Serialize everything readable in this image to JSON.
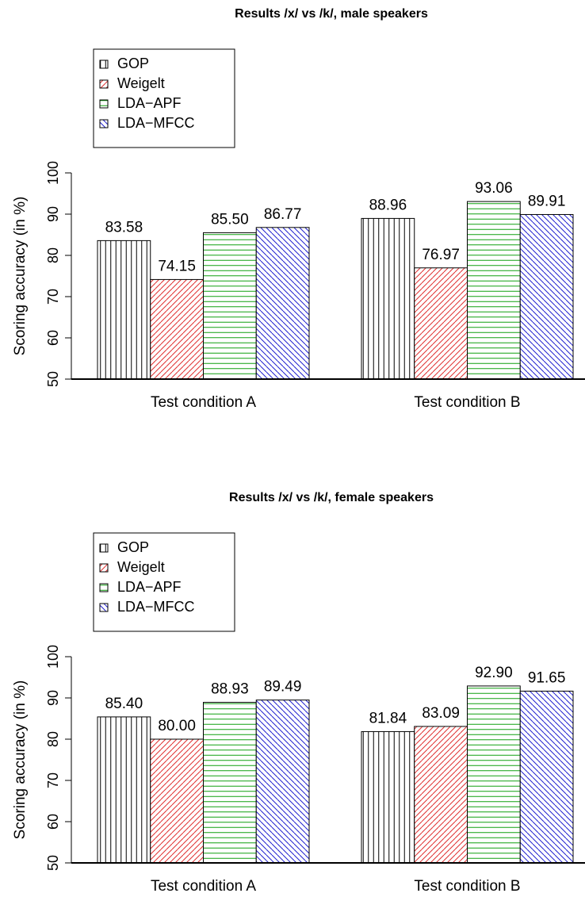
{
  "chart_data": [
    {
      "type": "bar",
      "title": "Results /x/ vs /k/, male speakers",
      "y_label": "Scoring accuracy (in %)",
      "categories": [
        "Test condition A",
        "Test condition B"
      ],
      "series": [
        {
          "name": "GOP",
          "color": "#000000",
          "hatch": "vertical",
          "values": [
            83.58,
            88.96
          ],
          "value_labels": [
            "83.58",
            "88.96"
          ]
        },
        {
          "name": "Weigelt",
          "color": "#e03030",
          "hatch": "diagonal-up",
          "values": [
            74.15,
            76.97
          ],
          "value_labels": [
            "74.15",
            "76.97"
          ]
        },
        {
          "name": "LDA−APF",
          "color": "#10a010",
          "hatch": "horizontal",
          "values": [
            85.5,
            93.06
          ],
          "value_labels": [
            "85.50",
            "93.06"
          ]
        },
        {
          "name": "LDA−MFCC",
          "color": "#2020d0",
          "hatch": "diagonal-down",
          "values": [
            86.77,
            89.91
          ],
          "value_labels": [
            "86.77",
            "89.91"
          ]
        }
      ],
      "ylim": [
        50,
        100
      ],
      "yticks": [
        50,
        60,
        70,
        80,
        90,
        100
      ],
      "legend": "top-left"
    },
    {
      "type": "bar",
      "title": "Results /x/ vs /k/, female speakers",
      "y_label": "Scoring accuracy (in %)",
      "categories": [
        "Test condition A",
        "Test condition B"
      ],
      "series": [
        {
          "name": "GOP",
          "color": "#000000",
          "hatch": "vertical",
          "values": [
            85.4,
            81.84
          ],
          "value_labels": [
            "85.40",
            "81.84"
          ]
        },
        {
          "name": "Weigelt",
          "color": "#e03030",
          "hatch": "diagonal-up",
          "values": [
            80.0,
            83.09
          ],
          "value_labels": [
            "80.00",
            "83.09"
          ]
        },
        {
          "name": "LDA−APF",
          "color": "#10a010",
          "hatch": "horizontal",
          "values": [
            88.93,
            92.9
          ],
          "value_labels": [
            "88.93",
            "92.90"
          ]
        },
        {
          "name": "LDA−MFCC",
          "color": "#2020d0",
          "hatch": "diagonal-down",
          "values": [
            89.49,
            91.65
          ],
          "value_labels": [
            "89.49",
            "91.65"
          ]
        }
      ],
      "ylim": [
        50,
        100
      ],
      "yticks": [
        50,
        60,
        70,
        80,
        90,
        100
      ],
      "legend": "top-left"
    }
  ]
}
